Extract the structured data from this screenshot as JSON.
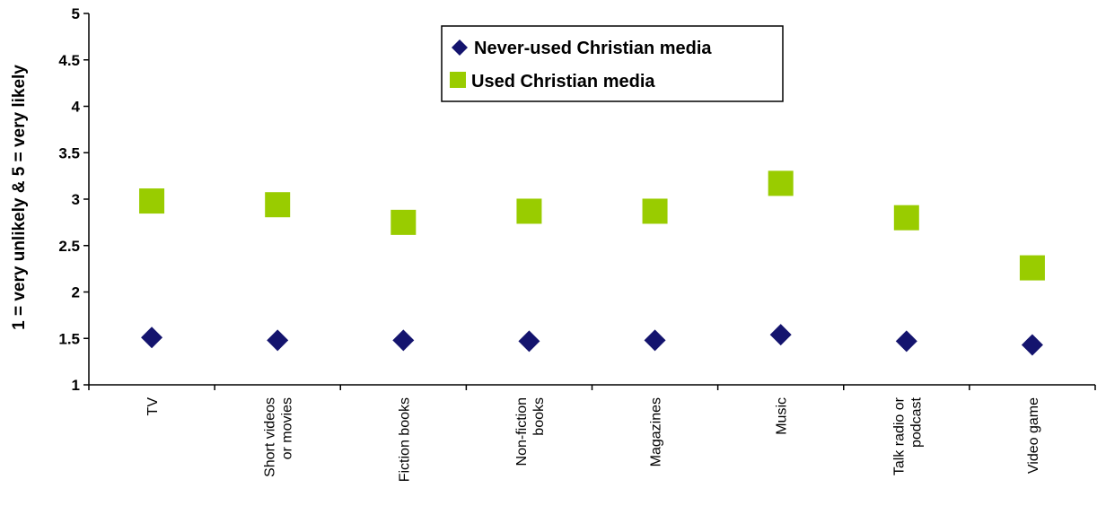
{
  "chart_data": {
    "type": "scatter",
    "categories": [
      [
        "TV"
      ],
      [
        "Short videos",
        "or movies"
      ],
      [
        "Fiction books"
      ],
      [
        "Non-fiction",
        "books"
      ],
      [
        "Magazines"
      ],
      [
        "Music"
      ],
      [
        "Talk radio or",
        "podcast"
      ],
      [
        "Video game"
      ]
    ],
    "series": [
      {
        "name": "Never-used Christian media",
        "marker": "diamond",
        "color": "#14146e",
        "values": [
          1.51,
          1.48,
          1.48,
          1.47,
          1.48,
          1.54,
          1.47,
          1.43
        ]
      },
      {
        "name": "Used Christian media",
        "marker": "square",
        "color": "#99cc00",
        "values": [
          2.98,
          2.94,
          2.75,
          2.87,
          2.87,
          3.17,
          2.8,
          2.26
        ]
      }
    ],
    "ylabel": "1 = very unlikely & 5 = very likely",
    "xlabel": "",
    "title": "",
    "ylim": [
      1,
      5
    ],
    "yticks": [
      "1",
      "1.5",
      "2",
      "2.5",
      "3",
      "3.5",
      "4",
      "4.5",
      "5"
    ],
    "grid": false,
    "legend_position": "top-center"
  }
}
